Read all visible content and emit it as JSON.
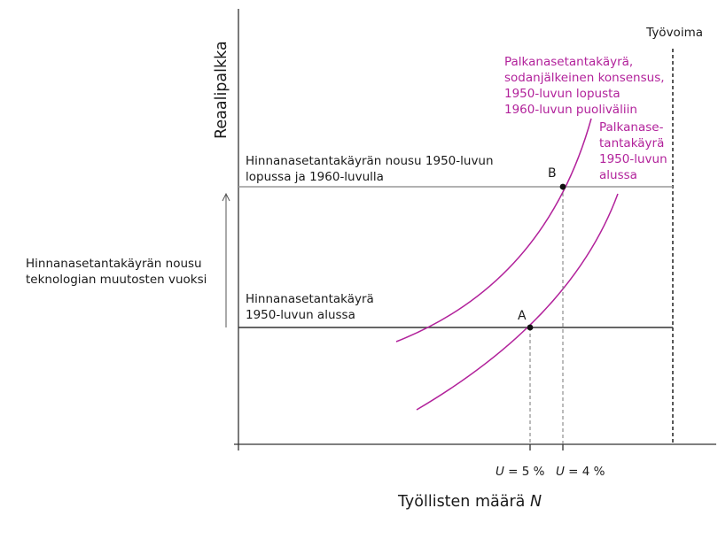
{
  "axes": {
    "y_title": "Reaalipalkka",
    "x_title_main": "Työllisten määrä ",
    "x_title_var": "N"
  },
  "labor_force": {
    "label": "Työvoima"
  },
  "wage_curve_late": {
    "lines": [
      "Palkanasetantakäyrä,",
      "sodanjälkeinen konsensus,",
      "1950-luvun lopusta",
      "1960-luvun puoliväliin"
    ]
  },
  "wage_curve_early": {
    "lines": [
      "Palkanase-",
      "tantakäyrä",
      "1950-luvun",
      "alussa"
    ]
  },
  "price_curve_high": {
    "lines": [
      "Hinnanasetantakäyrän nousu 1950-luvun",
      "lopussa ja 1960-luvulla"
    ]
  },
  "price_curve_low": {
    "lines": [
      "Hinnanasetantakäyrä",
      "1950-luvun alussa"
    ]
  },
  "shift_note": {
    "lines": [
      "Hinnanasetantakäyrän nousu",
      "teknologian muutosten vuoksi"
    ]
  },
  "points": {
    "a": "A",
    "b": "B"
  },
  "unemployment": {
    "a": {
      "var": "U",
      "rest": " = 5 %"
    },
    "b": {
      "var": "U",
      "rest": " = 4 %"
    }
  },
  "colors": {
    "wage_curve": "#b2229b",
    "price_curve_low": "#333333",
    "price_curve_high": "#999999",
    "axis": "#333333"
  }
}
